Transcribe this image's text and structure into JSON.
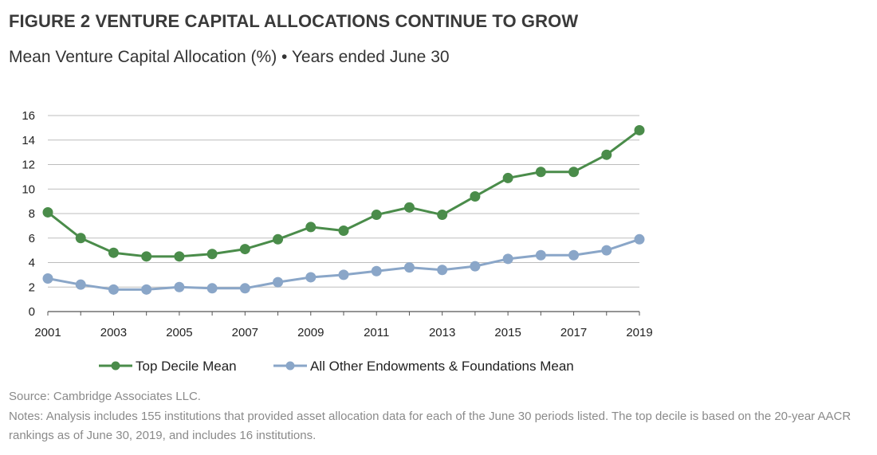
{
  "figure": {
    "title": "FIGURE 2 VENTURE CAPITAL ALLOCATIONS CONTINUE TO GROW",
    "subtitle": "Mean Venture Capital Allocation (%) • Years ended June 30",
    "source": "Source: Cambridge Associates LLC.",
    "notes": "Notes: Analysis includes 155 institutions that provided asset allocation data for each of the June 30 periods listed. The top decile is based on the 20-year AACR rankings as of June 30, 2019, and includes 16 institutions."
  },
  "chart_data": {
    "type": "line",
    "x": [
      2001,
      2002,
      2003,
      2004,
      2005,
      2006,
      2007,
      2008,
      2009,
      2010,
      2011,
      2012,
      2013,
      2014,
      2015,
      2016,
      2017,
      2018,
      2019
    ],
    "xticks": [
      "2001",
      "2003",
      "2005",
      "2007",
      "2009",
      "2011",
      "2013",
      "2015",
      "2017",
      "2019"
    ],
    "yticks": [
      "0",
      "2",
      "4",
      "6",
      "8",
      "10",
      "12",
      "14",
      "16"
    ],
    "ylim": [
      0,
      16
    ],
    "xlim": [
      2001,
      2019
    ],
    "grid": true,
    "legend_position": "bottom",
    "series": [
      {
        "name": "Top Decile Mean",
        "color": "#4a8c4a",
        "values": [
          8.1,
          6.0,
          4.8,
          4.5,
          4.5,
          4.7,
          5.1,
          5.9,
          6.9,
          6.6,
          7.9,
          8.5,
          7.9,
          9.4,
          10.9,
          11.4,
          11.4,
          12.8,
          14.8
        ]
      },
      {
        "name": "All Other Endowments & Foundations Mean",
        "color": "#8aa6c8",
        "values": [
          2.7,
          2.2,
          1.8,
          1.8,
          2.0,
          1.9,
          1.9,
          2.4,
          2.8,
          3.0,
          3.3,
          3.6,
          3.4,
          3.7,
          4.3,
          4.6,
          4.6,
          5.0,
          5.9
        ]
      }
    ]
  }
}
